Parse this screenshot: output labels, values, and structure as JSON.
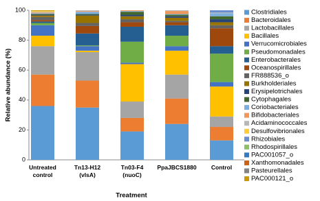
{
  "chart_data": {
    "type": "stacked_bar",
    "y_label": "Relative abundance (%)",
    "x_label": "Treatment",
    "categories": [
      "Untreated control",
      "Tn13-H12 (vlsA)",
      "Tn03-F4 (nuoC)",
      "PpaJBCS1880",
      "Control"
    ],
    "ylim": [
      0,
      100
    ],
    "yticks": [
      0,
      20,
      40,
      60,
      80,
      100
    ],
    "grid": false,
    "legend": "right",
    "series": [
      {
        "name": "Clostridiales",
        "color": "#5b9bd5",
        "values": [
          36,
          35,
          19,
          24,
          13
        ]
      },
      {
        "name": "Bacteroidales",
        "color": "#ed7d31",
        "values": [
          21,
          18,
          9,
          17,
          9
        ]
      },
      {
        "name": "Lactobacillales",
        "color": "#a5a5a5",
        "values": [
          19,
          19,
          11,
          16,
          7
        ]
      },
      {
        "name": "Bacillales",
        "color": "#ffc000",
        "values": [
          7,
          1,
          25,
          16,
          20
        ]
      },
      {
        "name": "Verrucomicrobiales",
        "color": "#4472c4",
        "values": [
          7,
          3,
          1,
          3,
          3
        ]
      },
      {
        "name": "Pseudomonadales",
        "color": "#70ad47",
        "values": [
          1.5,
          0.5,
          14,
          7,
          19
        ]
      },
      {
        "name": "Enterobacterales",
        "color": "#255e91",
        "values": [
          1,
          8,
          10,
          7,
          5
        ]
      },
      {
        "name": "Oceanospirillales",
        "color": "#9e480e",
        "values": [
          1,
          5,
          3,
          2,
          12
        ]
      },
      {
        "name": "FR888536_o",
        "color": "#636363",
        "values": [
          2,
          2,
          2,
          1,
          2
        ]
      },
      {
        "name": "Burkholderiales",
        "color": "#997300",
        "values": [
          1,
          5,
          2,
          2,
          2
        ]
      },
      {
        "name": "Erysipelotrichales",
        "color": "#264478",
        "values": [
          0.5,
          0.5,
          1,
          1,
          2
        ]
      },
      {
        "name": "Cytophagales",
        "color": "#43682b",
        "values": [
          0.5,
          0.5,
          2,
          1,
          2
        ]
      },
      {
        "name": "Coriobacteriales",
        "color": "#7cafdd",
        "values": [
          0.5,
          1.5,
          0.5,
          0.5,
          2
        ]
      },
      {
        "name": "Bifidobacteriales",
        "color": "#f1975a",
        "values": [
          0.5,
          0.5,
          0.5,
          2,
          0
        ]
      },
      {
        "name": "Acidaminococcales",
        "color": "#b7b7b7",
        "values": [
          0.5,
          0.5,
          0,
          0.5,
          0.5
        ]
      },
      {
        "name": "Desulfovibrionales",
        "color": "#ffcd33",
        "values": [
          0.5,
          0,
          0,
          0,
          0
        ]
      },
      {
        "name": "Rhizobiales",
        "color": "#698ed0",
        "values": [
          0,
          0,
          0,
          0,
          1.5
        ]
      },
      {
        "name": "Rhodospirillales",
        "color": "#8cc168",
        "values": [
          0,
          0,
          0,
          0,
          0
        ]
      },
      {
        "name": "PAC001057_o",
        "color": "#327dc2",
        "values": [
          0,
          0,
          0,
          0,
          0
        ]
      },
      {
        "name": "Xanthomonadales",
        "color": "#d26012",
        "values": [
          0,
          0,
          0,
          0,
          0
        ]
      },
      {
        "name": "Pasteurellales",
        "color": "#848484",
        "values": [
          0,
          0,
          0,
          0,
          0
        ]
      },
      {
        "name": "PAC000121_o",
        "color": "#cc9a00",
        "values": [
          0.5,
          0,
          0,
          0,
          0
        ]
      }
    ]
  }
}
